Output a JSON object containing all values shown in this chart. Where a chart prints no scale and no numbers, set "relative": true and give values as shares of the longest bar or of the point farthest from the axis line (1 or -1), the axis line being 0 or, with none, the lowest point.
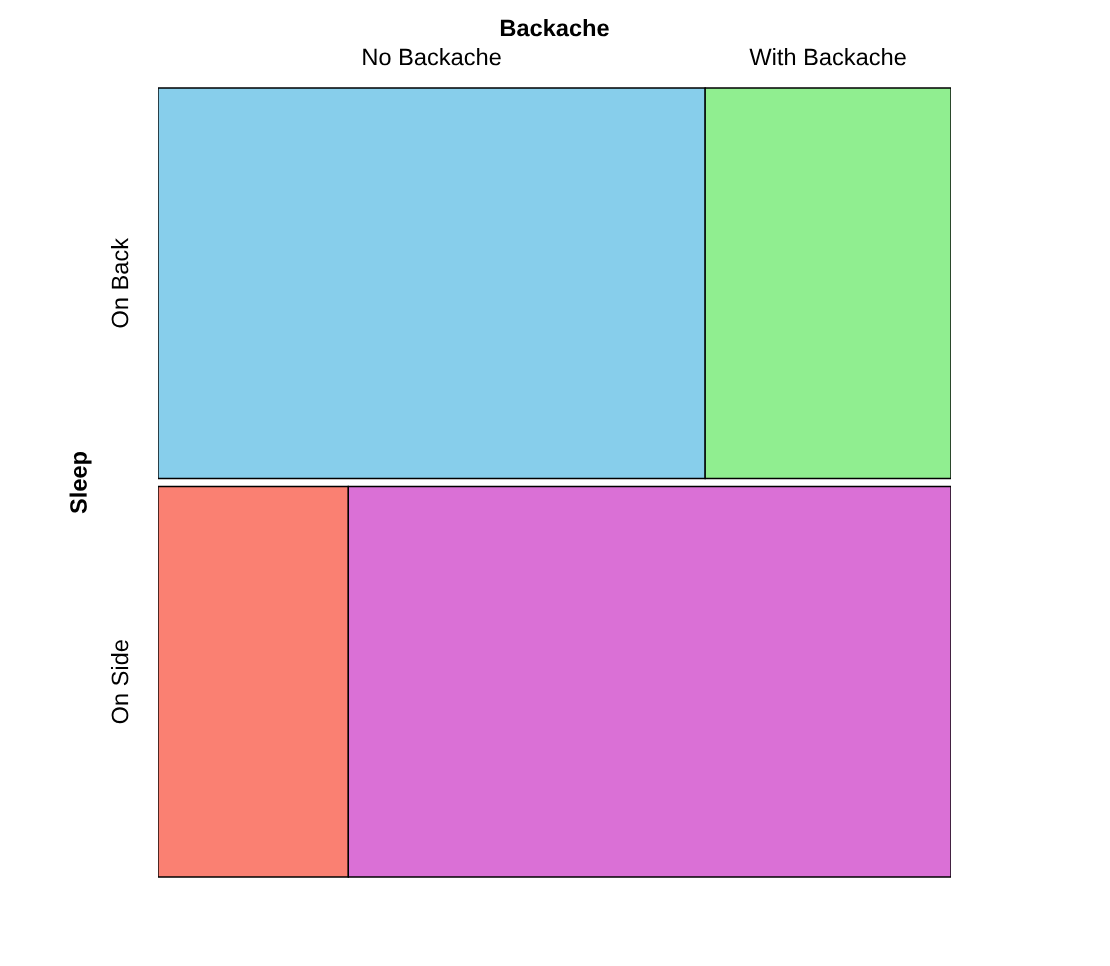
{
  "chart_data": {
    "type": "bar",
    "orientation": "horizontal",
    "stacked": true,
    "relative": true,
    "legend_title": "Backache",
    "ylabel": "Sleep",
    "categories": [
      "On Back",
      "On Side"
    ],
    "series": [
      {
        "name": "No Backache",
        "colors": [
          "#87ceeb",
          "#fa8072"
        ],
        "values": [
          0.69,
          0.24
        ]
      },
      {
        "name": "With Backache",
        "colors": [
          "#90ee90",
          "#da70d6"
        ],
        "values": [
          0.31,
          0.76
        ]
      }
    ]
  }
}
